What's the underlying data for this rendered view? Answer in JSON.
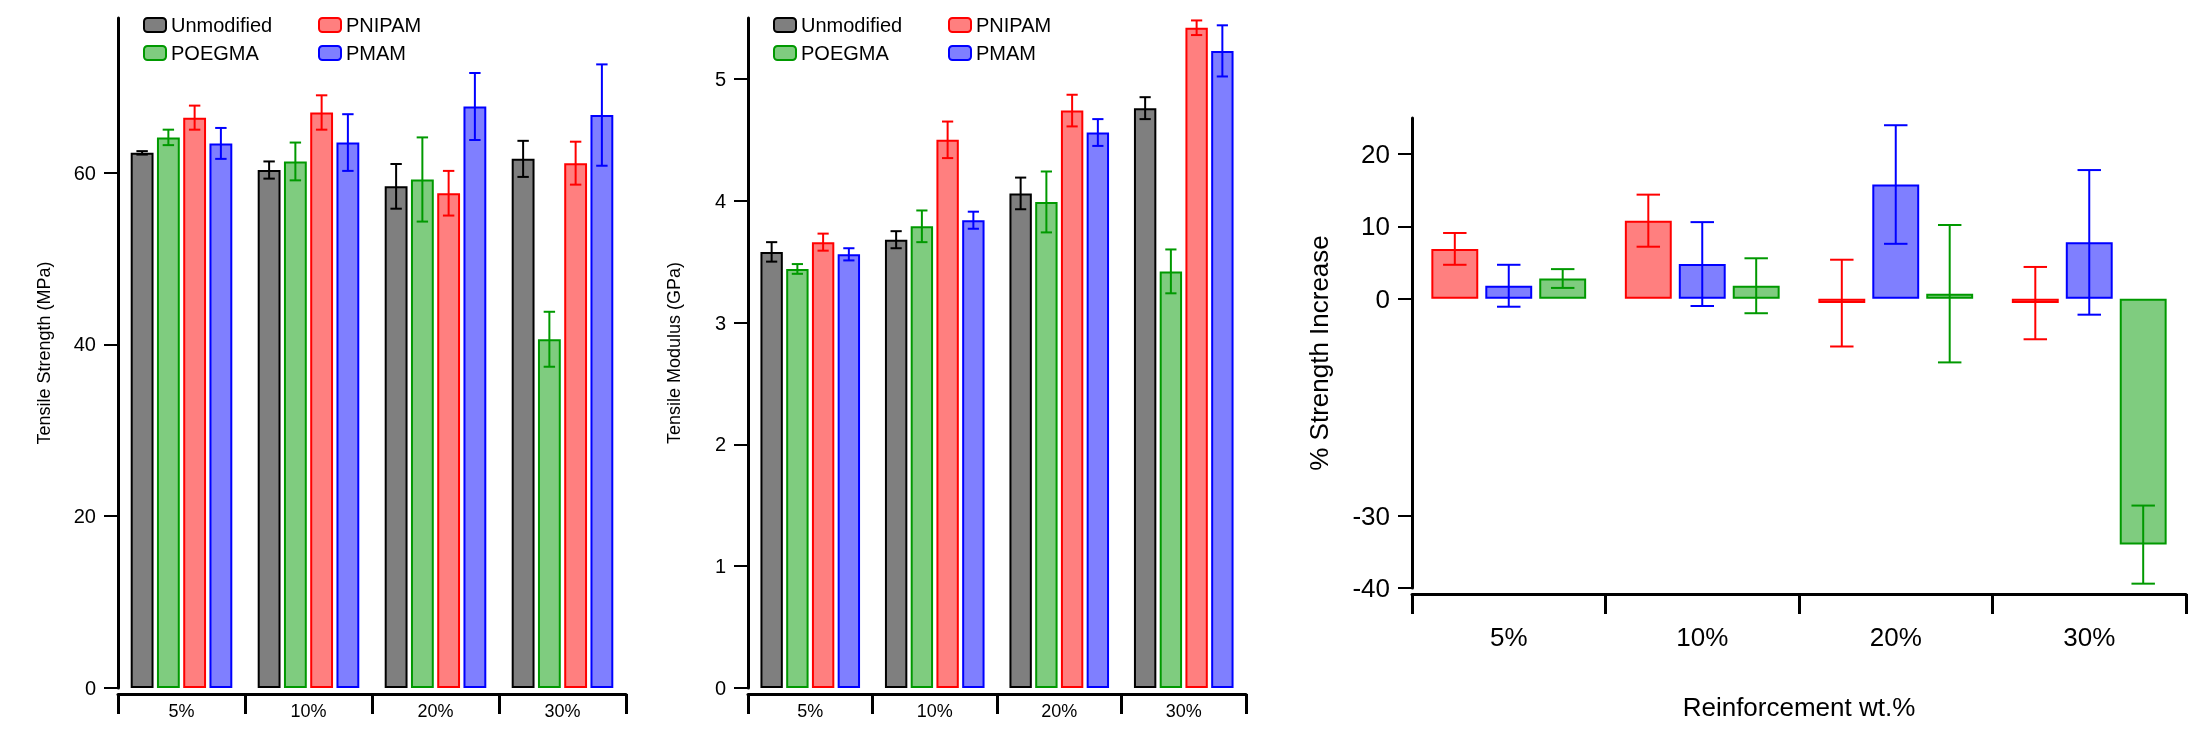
{
  "chart_data": [
    {
      "type": "bar",
      "ylabel": "Tensile Strength (MPa)",
      "categories": [
        "5%",
        "10%",
        "20%",
        "30%"
      ],
      "ylim": [
        0,
        78
      ],
      "yticks": [
        0,
        20,
        40,
        60
      ],
      "grid": false,
      "legend": "top left",
      "series": [
        {
          "name": "Unmodified",
          "color": "#000000",
          "values": [
            62.3,
            60.3,
            58.4,
            61.6
          ],
          "errors": [
            0.2,
            1.0,
            2.6,
            2.1
          ]
        },
        {
          "name": "POEGMA",
          "color": "#009900",
          "values": [
            64.1,
            61.3,
            59.2,
            40.6
          ],
          "errors": [
            0.9,
            2.2,
            4.9,
            3.2
          ]
        },
        {
          "name": "PNIPAM",
          "color": "#ff0000",
          "values": [
            66.4,
            67.0,
            57.6,
            61.1
          ],
          "errors": [
            1.4,
            2.0,
            2.6,
            2.5
          ]
        },
        {
          "name": "PMAM",
          "color": "#0000ff",
          "values": [
            63.4,
            63.5,
            67.7,
            66.7
          ],
          "errors": [
            1.8,
            3.3,
            3.9,
            5.9
          ]
        }
      ]
    },
    {
      "type": "bar",
      "ylabel": "Tensile Modulus (GPa)",
      "categories": [
        "5%",
        "10%",
        "20%",
        "30%"
      ],
      "ylim": [
        0,
        5.5
      ],
      "yticks": [
        0,
        1,
        2,
        3,
        4,
        5
      ],
      "grid": false,
      "legend": "top left",
      "series": [
        {
          "name": "Unmodified",
          "color": "#000000",
          "values": [
            3.58,
            3.68,
            4.06,
            4.76
          ],
          "errors": [
            0.08,
            0.07,
            0.13,
            0.09
          ]
        },
        {
          "name": "POEGMA",
          "color": "#009900",
          "values": [
            3.44,
            3.79,
            3.99,
            3.42
          ],
          "errors": [
            0.04,
            0.13,
            0.25,
            0.18
          ]
        },
        {
          "name": "PNIPAM",
          "color": "#ff0000",
          "values": [
            3.66,
            4.5,
            4.74,
            5.42
          ],
          "errors": [
            0.07,
            0.15,
            0.13,
            0.06
          ]
        },
        {
          "name": "PMAM",
          "color": "#0000ff",
          "values": [
            3.56,
            3.84,
            4.56,
            5.23
          ],
          "errors": [
            0.05,
            0.07,
            0.11,
            0.21
          ]
        }
      ]
    },
    {
      "type": "bar",
      "xlabel": "Reinforcement wt.%",
      "ylabel": "% Strength Increase",
      "categories": [
        "5%",
        "10%",
        "20%",
        "30%"
      ],
      "ylim": [
        -40,
        25
      ],
      "yticks": [
        -40,
        -30,
        0,
        10,
        20
      ],
      "grid": false,
      "series": [
        {
          "color": "#ff0000",
          "values": [
            6.9,
            10.8,
            -0.6,
            -0.6
          ],
          "errors": [
            2.2,
            3.6,
            6.0,
            5.0
          ]
        },
        {
          "color": "#0000ff",
          "values": [
            1.8,
            4.8,
            15.8,
            7.8
          ],
          "errors": [
            2.9,
            5.8,
            8.2,
            10.0
          ]
        },
        {
          "color": "#009900",
          "values": [
            2.8,
            1.8,
            0.7,
            -34
          ],
          "errors": [
            1.3,
            3.8,
            9.5,
            5.4
          ]
        }
      ]
    }
  ]
}
